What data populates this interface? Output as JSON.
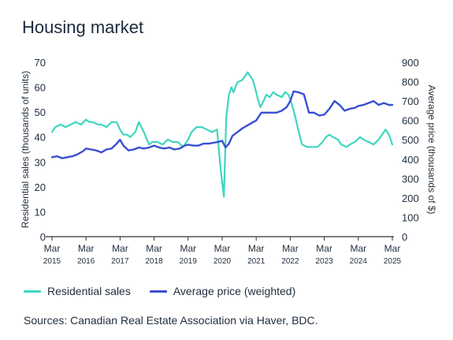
{
  "title": "Housing market",
  "source": "Sources: Canadian Real Estate Association via Haver, BDC.",
  "colors": {
    "sales": "#3fd6bf",
    "price": "#3a4fd1",
    "axis": "#333333"
  },
  "chart_data": {
    "type": "line",
    "title": "Housing market",
    "ylabel_left": "Residential sales (thousands of units)",
    "ylabel_right": "Average price (thousands of $)",
    "ylim_left": [
      0,
      70
    ],
    "ylim_right": [
      0,
      900
    ],
    "yticks_left": [
      0,
      10,
      20,
      30,
      40,
      50,
      60,
      70
    ],
    "yticks_right": [
      0,
      100,
      200,
      300,
      400,
      500,
      600,
      700,
      800,
      900
    ],
    "xlim": [
      2015.0,
      2025.0
    ],
    "x_ticks": [
      {
        "x": 2015,
        "label": "Mar",
        "year": "2015"
      },
      {
        "x": 2016,
        "label": "Mar",
        "year": "2016"
      },
      {
        "x": 2017,
        "label": "Mar",
        "year": "2017"
      },
      {
        "x": 2018,
        "label": "Mar",
        "year": "2018"
      },
      {
        "x": 2019,
        "label": "Mar",
        "year": "2019"
      },
      {
        "x": 2020,
        "label": "Mar",
        "year": "2020"
      },
      {
        "x": 2021,
        "label": "Mar",
        "year": "2021"
      },
      {
        "x": 2022,
        "label": "Mar",
        "year": "2022"
      },
      {
        "x": 2023,
        "label": "Mar",
        "year": "2023"
      },
      {
        "x": 2024,
        "label": "Mar",
        "year": "2024"
      },
      {
        "x": 2025,
        "label": "Mar",
        "year": "2025"
      }
    ],
    "grid": false,
    "legend_position": "bottom-left",
    "series": [
      {
        "name": "Residential sales",
        "axis": "left",
        "x": [
          2015.0,
          2015.1,
          2015.25,
          2015.4,
          2015.55,
          2015.7,
          2015.85,
          2016.0,
          2016.1,
          2016.2,
          2016.35,
          2016.45,
          2016.6,
          2016.75,
          2016.9,
          2017.0,
          2017.1,
          2017.2,
          2017.3,
          2017.45,
          2017.55,
          2017.7,
          2017.85,
          2017.95,
          2018.1,
          2018.25,
          2018.4,
          2018.55,
          2018.7,
          2018.85,
          2019.0,
          2019.1,
          2019.25,
          2019.4,
          2019.55,
          2019.7,
          2019.85,
          2019.95,
          2020.05,
          2020.12,
          2020.2,
          2020.27,
          2020.33,
          2020.45,
          2020.6,
          2020.75,
          2020.9,
          2021.0,
          2021.05,
          2021.12,
          2021.2,
          2021.3,
          2021.4,
          2021.5,
          2021.6,
          2021.75,
          2021.85,
          2021.95,
          2022.05,
          2022.15,
          2022.25,
          2022.35,
          2022.5,
          2022.65,
          2022.8,
          2022.95,
          2023.05,
          2023.15,
          2023.25,
          2023.4,
          2023.5,
          2023.65,
          2023.75,
          2023.9,
          2024.05,
          2024.15,
          2024.3,
          2024.45,
          2024.6,
          2024.7,
          2024.8,
          2024.9,
          2025.0
        ],
        "values": [
          42,
          44,
          45,
          44,
          45,
          46,
          45,
          47,
          46,
          46,
          45,
          45,
          44,
          46,
          46,
          43,
          41,
          41,
          40,
          42,
          46,
          42,
          37,
          38,
          38,
          37,
          39,
          38,
          38,
          36,
          39,
          42,
          44,
          44,
          43,
          42,
          43,
          28,
          16,
          48,
          57,
          60,
          58,
          62,
          63,
          66,
          63,
          58,
          55,
          52,
          54,
          57,
          56,
          58,
          57,
          56,
          58,
          57,
          53,
          48,
          42,
          37,
          36,
          36,
          36,
          38,
          40,
          41,
          40,
          39,
          37,
          36,
          37,
          38,
          40,
          39,
          38,
          37,
          39,
          41,
          43,
          41,
          37
        ]
      },
      {
        "name": "Average price (weighted)",
        "axis": "right",
        "x": [
          2015.0,
          2015.15,
          2015.3,
          2015.45,
          2015.6,
          2015.75,
          2015.9,
          2016.0,
          2016.15,
          2016.3,
          2016.45,
          2016.6,
          2016.75,
          2016.9,
          2017.0,
          2017.1,
          2017.25,
          2017.4,
          2017.55,
          2017.7,
          2017.85,
          2018.0,
          2018.15,
          2018.3,
          2018.45,
          2018.6,
          2018.75,
          2018.9,
          2019.0,
          2019.15,
          2019.3,
          2019.45,
          2019.6,
          2019.75,
          2019.9,
          2020.0,
          2020.1,
          2020.2,
          2020.3,
          2020.45,
          2020.6,
          2020.75,
          2020.9,
          2021.0,
          2021.15,
          2021.3,
          2021.45,
          2021.6,
          2021.75,
          2021.9,
          2022.0,
          2022.1,
          2022.25,
          2022.4,
          2022.55,
          2022.7,
          2022.85,
          2023.0,
          2023.15,
          2023.3,
          2023.45,
          2023.6,
          2023.75,
          2023.9,
          2024.0,
          2024.15,
          2024.3,
          2024.45,
          2024.6,
          2024.75,
          2024.9,
          2025.0
        ],
        "values": [
          410,
          415,
          405,
          410,
          415,
          425,
          440,
          455,
          450,
          445,
          435,
          450,
          455,
          480,
          500,
          470,
          445,
          450,
          460,
          455,
          460,
          470,
          460,
          455,
          460,
          450,
          455,
          470,
          475,
          470,
          470,
          480,
          480,
          485,
          490,
          495,
          460,
          480,
          520,
          540,
          560,
          575,
          590,
          600,
          640,
          640,
          640,
          640,
          650,
          670,
          700,
          750,
          745,
          735,
          640,
          640,
          625,
          630,
          660,
          700,
          680,
          650,
          660,
          665,
          675,
          680,
          690,
          700,
          680,
          690,
          680,
          680
        ]
      }
    ]
  }
}
